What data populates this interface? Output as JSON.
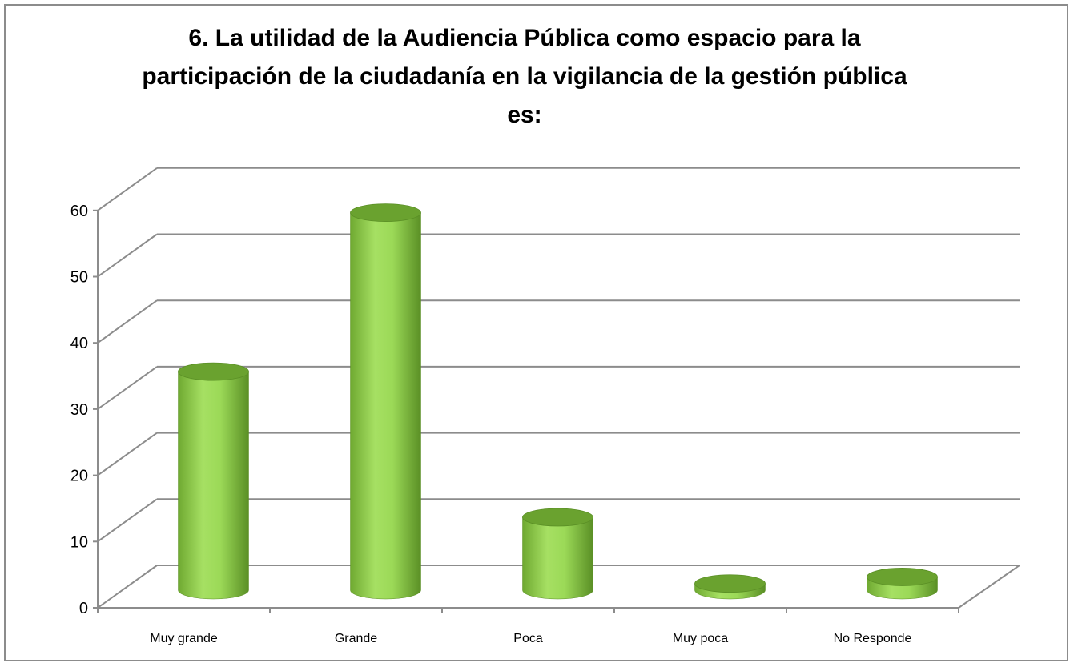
{
  "chart_data": {
    "type": "bar",
    "style": "3d-cylinder",
    "title": "6. La utilidad de la Audiencia Pública como espacio para la participación de la ciudadanía en la vigilancia de la gestión pública es:",
    "title_lines": [
      "6. La utilidad de la Audiencia Pública como espacio para la",
      "participación de la ciudadanía en la vigilancia de la gestión pública",
      "es:"
    ],
    "categories": [
      "Muy grande",
      "Grande",
      "Poca",
      "Muy poca",
      "No Responde"
    ],
    "values": [
      33,
      57,
      11,
      1,
      2
    ],
    "ylim": [
      0,
      60
    ],
    "yticks": [
      "0",
      "10",
      "20",
      "30",
      "40",
      "50",
      "60"
    ],
    "grid": true,
    "legend": "none",
    "colors": {
      "bar_light": "#a6e063",
      "bar_mid": "#8cc63f",
      "bar_dark": "#5a8f25",
      "bar_top": "#6aa22f",
      "grid": "#8c8c8c",
      "axis": "#8c8c8c"
    }
  }
}
